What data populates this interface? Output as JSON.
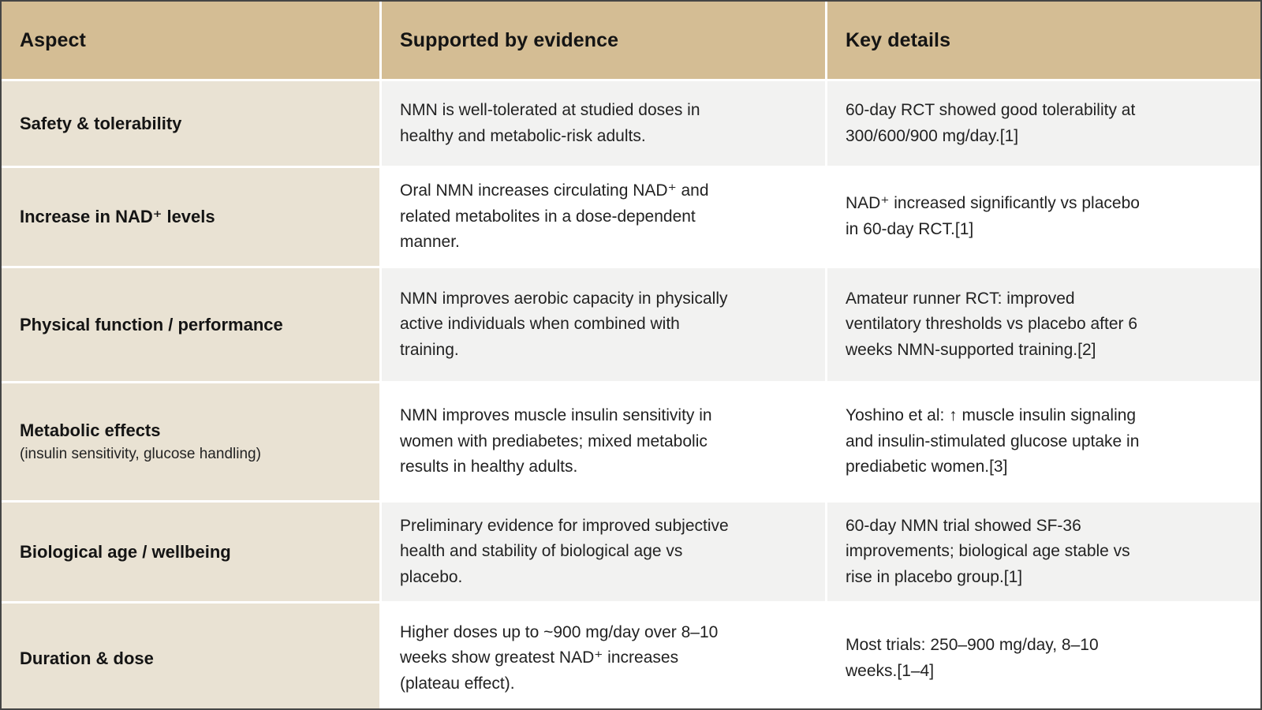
{
  "colors": {
    "header_bg": "#d4bd94",
    "aspect_col_bg": "#e9e2d3",
    "row_gray_bg": "#f2f2f1",
    "row_white_bg": "#ffffff",
    "text": "#1c1c1c",
    "divider": "#ffffff"
  },
  "table": {
    "columns": [
      "Aspect",
      "Supported by evidence",
      "Key details"
    ],
    "rows": [
      {
        "aspect": "Safety & tolerability",
        "evidence": "NMN is well-tolerated at studied doses in\nhealthy and metabolic-risk adults.",
        "details": "60-day RCT showed good tolerability at\n300/600/900 mg/day.[1]"
      },
      {
        "aspect": "Increase in NAD⁺ levels",
        "evidence": "Oral NMN increases circulating NAD⁺ and\nrelated metabolites in a dose-dependent\nmanner.",
        "details": "NAD⁺ increased significantly vs placebo\nin 60-day RCT.[1]"
      },
      {
        "aspect": "Physical function / performance",
        "evidence": "NMN improves aerobic capacity in physically\nactive individuals when combined with\ntraining.",
        "details": "Amateur runner RCT: improved\nventilatory thresholds vs placebo after 6\nweeks NMN-supported training.[2]"
      },
      {
        "aspect": "Metabolic effects",
        "aspect_note": "(insulin sensitivity, glucose handling)",
        "evidence": "NMN improves muscle insulin sensitivity in\nwomen with prediabetes; mixed metabolic\nresults in healthy adults.",
        "details": "Yoshino et al: ↑ muscle insulin signaling\nand insulin-stimulated glucose uptake in\nprediabetic women.[3]"
      },
      {
        "aspect": "Biological age / wellbeing",
        "evidence": "Preliminary evidence for improved subjective\nhealth and stability of biological age vs\nplacebo.",
        "details": "60-day NMN trial showed SF-36\nimprovements; biological age stable vs\nrise in placebo group.[1]"
      },
      {
        "aspect": "Duration & dose",
        "evidence": "Higher doses up to ~900 mg/day over 8–10\nweeks show greatest NAD⁺ increases\n(plateau effect).",
        "details": "Most trials: 250–900 mg/day, 8–10\nweeks.[1–4]"
      }
    ]
  }
}
